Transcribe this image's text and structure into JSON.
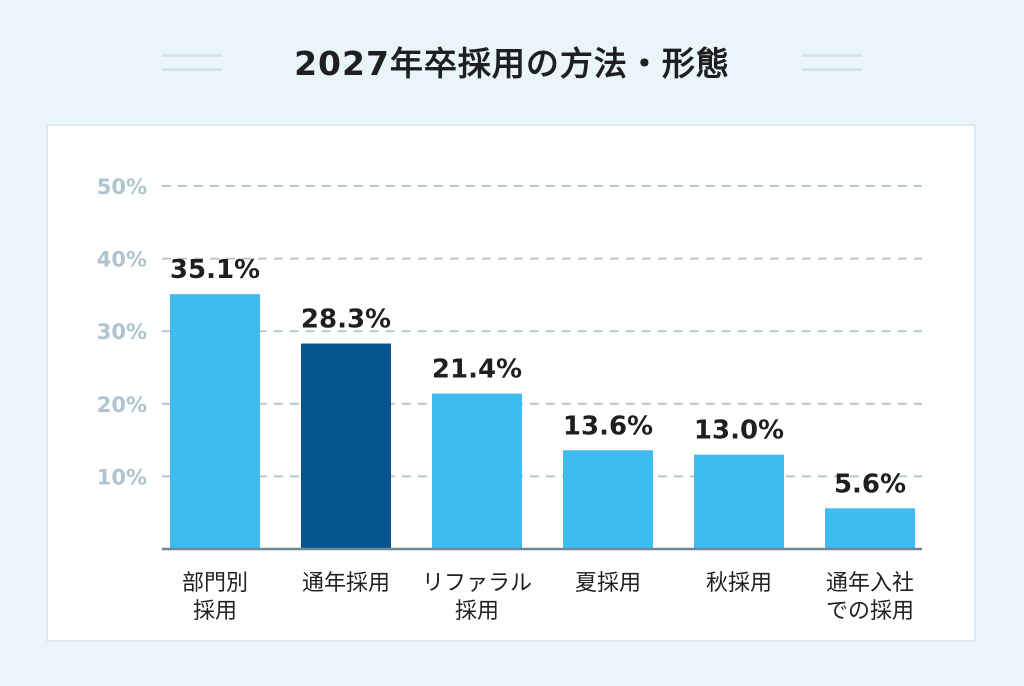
{
  "title": "2027年卒採用の方法・形態",
  "colors": {
    "bar": "#3fbcef",
    "highlight": "#04548f",
    "grid": "#b7c9d4",
    "tick": "#b0c4cf"
  },
  "chart_data": {
    "type": "bar",
    "title": "2027年卒採用の方法・形態",
    "categories": [
      [
        "部門別",
        "採用"
      ],
      [
        "通年採用"
      ],
      [
        "リファラル",
        "採用"
      ],
      [
        "夏採用"
      ],
      [
        "秋採用"
      ],
      [
        "通年入社",
        "での採用"
      ]
    ],
    "values": [
      35.1,
      28.3,
      21.4,
      13.6,
      13.0,
      5.6
    ],
    "value_labels": [
      "35.1%",
      "28.3%",
      "21.4%",
      "13.6%",
      "13.0%",
      "5.6%"
    ],
    "highlight_index": 1,
    "yticks": [
      10,
      20,
      30,
      40,
      50
    ],
    "ytick_labels": [
      "10%",
      "20%",
      "30%",
      "40%",
      "50%"
    ],
    "ylim": [
      0,
      50
    ],
    "grid": true,
    "xlabel": "",
    "ylabel": ""
  }
}
